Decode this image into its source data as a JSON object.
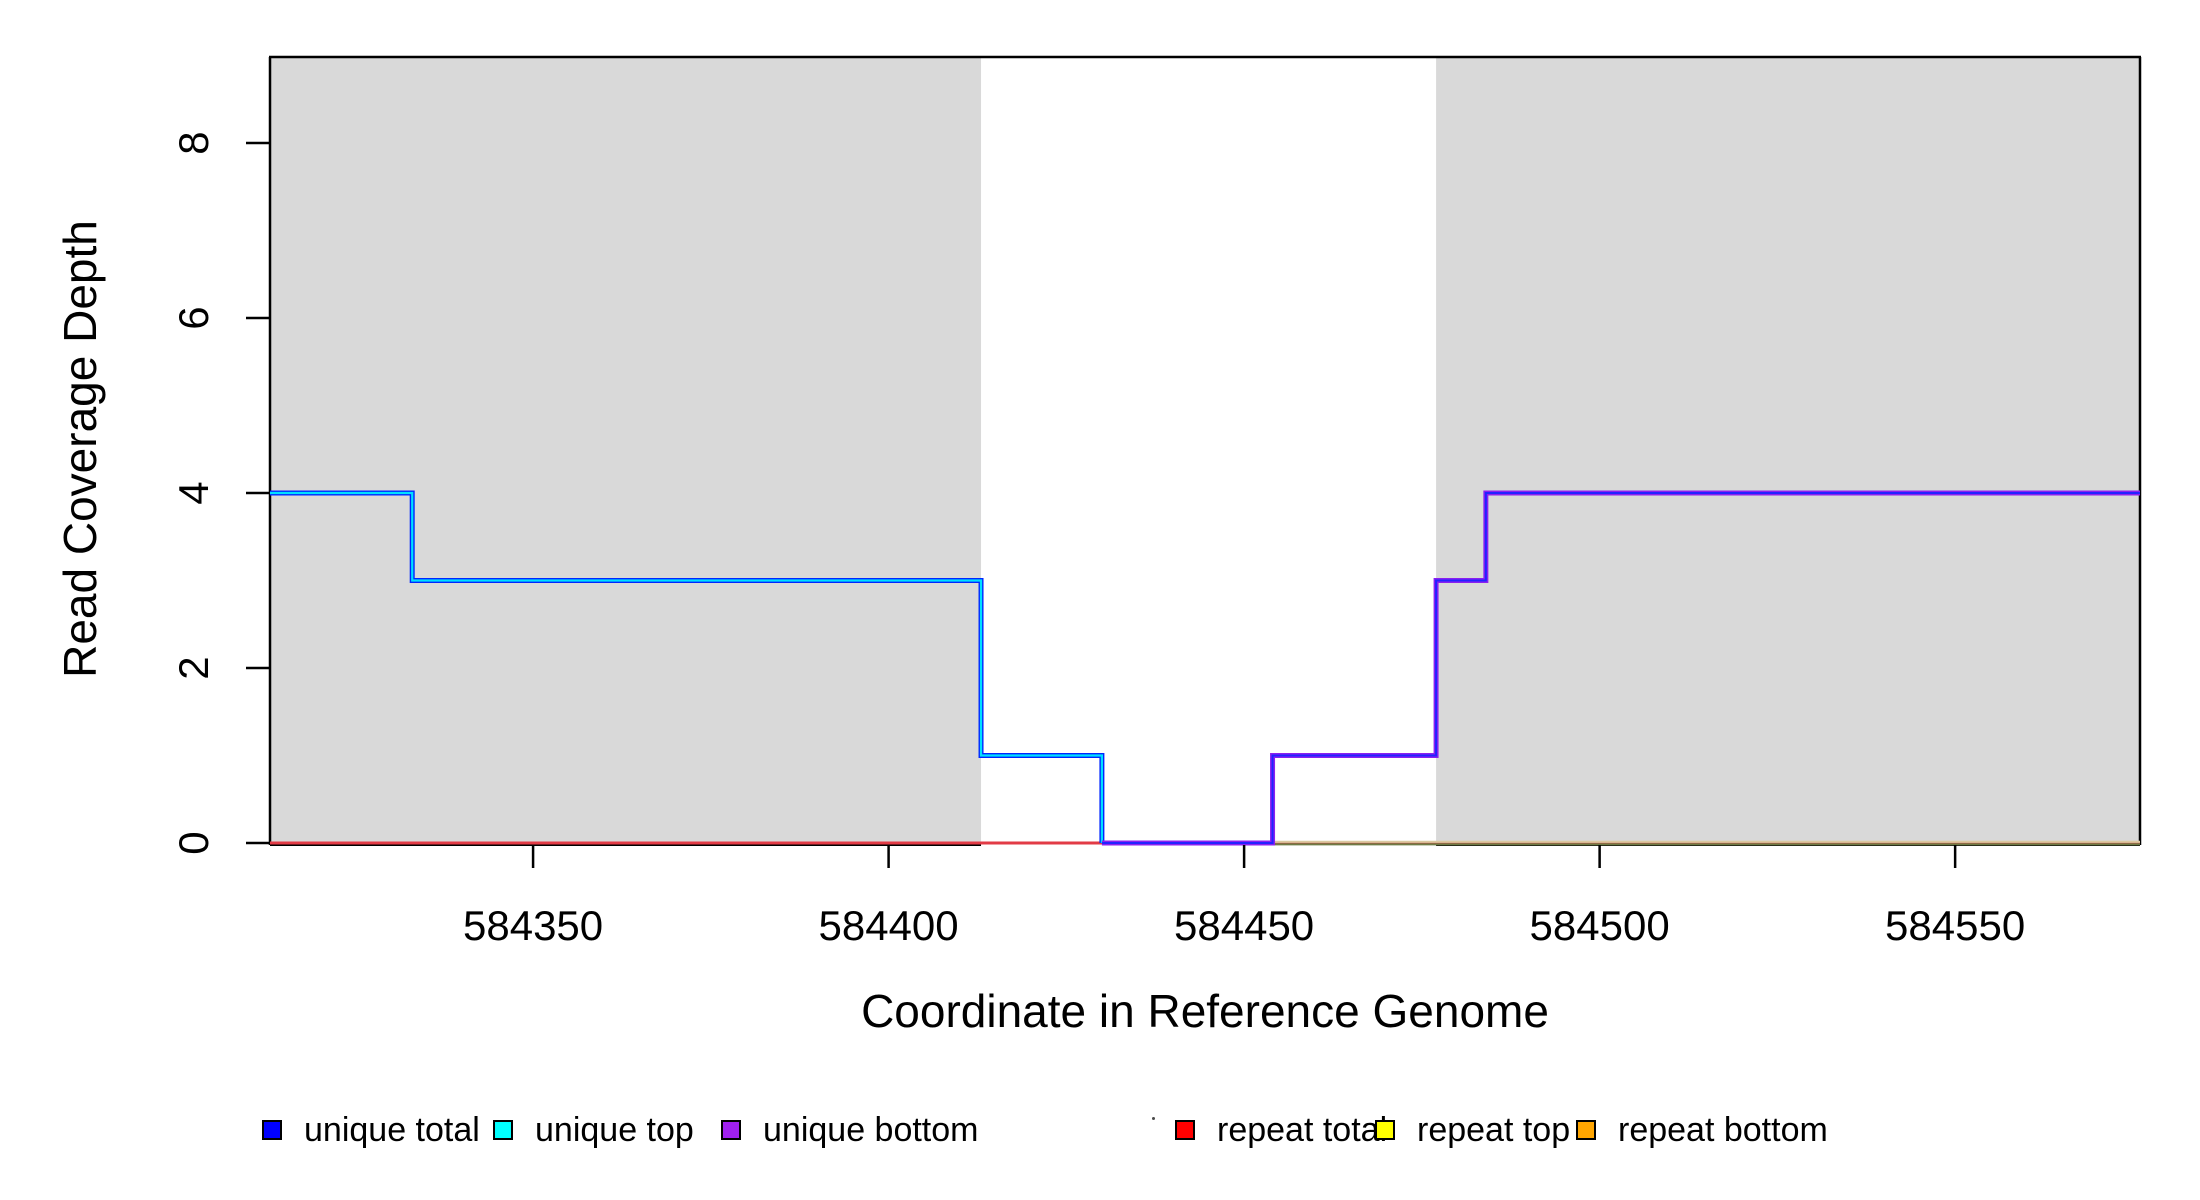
{
  "figure": {
    "x_axis_title": "Coordinate in Reference Genome",
    "y_axis_title": "Read Coverage Depth"
  },
  "chart_data": {
    "type": "line",
    "subtype": "step-coverage-plot",
    "title": "",
    "xlabel": "Coordinate in Reference Genome",
    "ylabel": "Read Coverage Depth",
    "x_range": [
      584313,
      584576
    ],
    "y_range": [
      0,
      9
    ],
    "x_ticks": [
      584350,
      584400,
      584450,
      584500,
      584550
    ],
    "y_ticks": [
      0,
      2,
      4,
      6,
      8
    ],
    "grid": "off",
    "shade_color": "#D9D9D9",
    "shaded_regions": [
      {
        "name": "left-repeat-masked-region",
        "from": 584313,
        "to": 584413
      },
      {
        "name": "right-repeat-masked-region",
        "from": 584477,
        "to": 584576
      }
    ],
    "series": [
      {
        "name": "unique total",
        "color": "#0000FF",
        "steps": [
          [
            584313,
            4
          ],
          [
            584333,
            3
          ],
          [
            584413,
            1
          ],
          [
            584430,
            0
          ],
          [
            584454,
            1
          ],
          [
            584477,
            3
          ],
          [
            584484,
            4
          ],
          [
            584576,
            4
          ]
        ]
      },
      {
        "name": "unique top",
        "color": "#00FFFF",
        "steps": [
          [
            584313,
            4
          ],
          [
            584333,
            3
          ],
          [
            584413,
            1
          ],
          [
            584430,
            0
          ],
          [
            584576,
            0
          ]
        ]
      },
      {
        "name": "unique bottom",
        "color": "#A020F0",
        "steps": [
          [
            584313,
            0
          ],
          [
            584454,
            1
          ],
          [
            584477,
            3
          ],
          [
            584484,
            4
          ],
          [
            584576,
            4
          ]
        ]
      },
      {
        "name": "repeat total",
        "color": "#FF0000",
        "steps": [
          [
            584313,
            0
          ],
          [
            584576,
            0
          ]
        ]
      },
      {
        "name": "repeat top",
        "color": "#FFFF00",
        "steps": [
          [
            584313,
            0
          ],
          [
            584576,
            0
          ]
        ]
      },
      {
        "name": "repeat bottom",
        "color": "#FFA500",
        "steps": [
          [
            584313,
            0
          ],
          [
            584576,
            0
          ]
        ]
      }
    ],
    "render_hints": {
      "baseline_red": {
        "color": "#E23B46",
        "from": 584313,
        "to": 584576,
        "width": 3
      },
      "baseline_tan": {
        "top_color": "#DBC9A0",
        "bottom_color": "#6F7B45",
        "from": 584454,
        "to": 584576
      },
      "left_line": {
        "casing": "#0026FF",
        "core": "#00E0FF",
        "vertices": [
          [
            584313,
            4
          ],
          [
            584333,
            4
          ],
          [
            584333,
            3
          ],
          [
            584413,
            3
          ],
          [
            584413,
            1
          ],
          [
            584430,
            1
          ],
          [
            584430,
            0
          ]
        ]
      },
      "right_line": {
        "casing": "#8B20F0",
        "core": "#2222FF",
        "vertices": [
          [
            584430,
            0
          ],
          [
            584454,
            0
          ],
          [
            584454,
            1
          ],
          [
            584477,
            1
          ],
          [
            584477,
            3
          ],
          [
            584484,
            3
          ],
          [
            584484,
            4
          ],
          [
            584576,
            4
          ]
        ]
      }
    },
    "legend_position": "bottom-horizontal",
    "legend": [
      {
        "label": "unique total",
        "color": "#0000FF"
      },
      {
        "label": "unique top",
        "color": "#00FFFF"
      },
      {
        "label": "unique bottom",
        "color": "#A020F0"
      },
      {
        "label": "repeat total",
        "color": "#FF0000"
      },
      {
        "label": "repeat top",
        "color": "#FFFF00"
      },
      {
        "label": "repeat bottom",
        "color": "#FFA500"
      }
    ]
  }
}
